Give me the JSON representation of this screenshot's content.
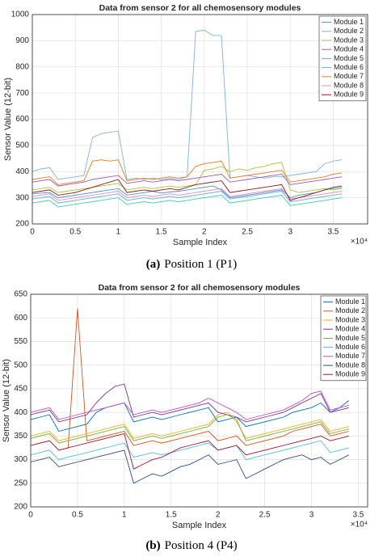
{
  "chart_data": [
    {
      "type": "line",
      "title": "Data from sensor 2 for all chemosensory modules",
      "x_label": "Sample Index",
      "y_label": "Sensor Value (12-bit)",
      "x_exponent_label": "×10⁴",
      "caption_label": "(a)",
      "caption": "Position 1 (P1)",
      "grid": true,
      "legend": "top-right",
      "xlim": [
        0,
        39000
      ],
      "ylim": [
        200,
        1000
      ],
      "xticks": [
        0,
        {
          "value": 5000,
          "label": "0.5"
        },
        {
          "value": 10000,
          "label": "1"
        },
        {
          "value": 15000,
          "label": "1.5"
        },
        {
          "value": 20000,
          "label": "2"
        },
        {
          "value": 25000,
          "label": "2.5"
        },
        {
          "value": 30000,
          "label": "3"
        },
        {
          "value": 35000,
          "label": "3.5"
        }
      ],
      "yticks": [
        200,
        300,
        400,
        500,
        600,
        700,
        800,
        900,
        1000
      ],
      "x": [
        0,
        1000,
        2000,
        3000,
        4000,
        5000,
        6000,
        7000,
        8000,
        9000,
        10000,
        11000,
        12000,
        13000,
        14000,
        15000,
        16000,
        17000,
        18000,
        19000,
        20000,
        21000,
        22000,
        23000,
        24000,
        25000,
        26000,
        27000,
        28000,
        29000,
        30000,
        31000,
        32000,
        33000,
        34000,
        35000,
        36000
      ],
      "series": [
        {
          "name": "Module 1",
          "color": "#4a90d9",
          "values": [
            315,
            318,
            320,
            300,
            305,
            310,
            315,
            320,
            325,
            330,
            335,
            310,
            315,
            320,
            325,
            318,
            322,
            325,
            330,
            335,
            340,
            345,
            330,
            300,
            305,
            310,
            315,
            320,
            325,
            330,
            300,
            310,
            315,
            320,
            330,
            335,
            340
          ]
        },
        {
          "name": "Module 2",
          "color": "#7fb2e5",
          "values": [
            400,
            410,
            415,
            370,
            375,
            380,
            385,
            530,
            545,
            550,
            555,
            370,
            375,
            370,
            375,
            370,
            375,
            370,
            380,
            935,
            940,
            920,
            920,
            375,
            380,
            385,
            380,
            375,
            380,
            380,
            385,
            390,
            395,
            400,
            430,
            440,
            445
          ]
        },
        {
          "name": "Module 3",
          "color": "#a8c43a",
          "values": [
            330,
            335,
            340,
            320,
            325,
            330,
            335,
            340,
            345,
            350,
            355,
            330,
            335,
            340,
            335,
            340,
            345,
            340,
            345,
            350,
            405,
            410,
            420,
            400,
            410,
            405,
            415,
            420,
            430,
            435,
            330,
            320,
            325,
            330,
            335,
            330,
            335
          ]
        },
        {
          "name": "Module 4",
          "color": "#9b59b6",
          "values": [
            360,
            365,
            370,
            345,
            350,
            355,
            360,
            370,
            375,
            380,
            385,
            355,
            360,
            365,
            360,
            365,
            370,
            365,
            370,
            375,
            380,
            385,
            390,
            360,
            365,
            370,
            375,
            380,
            385,
            390,
            350,
            355,
            360,
            365,
            370,
            375,
            380
          ]
        },
        {
          "name": "Module 5",
          "color": "#5dade2",
          "values": [
            295,
            300,
            305,
            280,
            285,
            290,
            295,
            300,
            305,
            310,
            315,
            290,
            295,
            300,
            295,
            300,
            305,
            300,
            305,
            310,
            315,
            320,
            325,
            295,
            300,
            305,
            310,
            315,
            320,
            325,
            285,
            290,
            295,
            300,
            305,
            310,
            315
          ]
        },
        {
          "name": "Module 6",
          "color": "#48c9b0",
          "values": [
            280,
            285,
            290,
            265,
            270,
            275,
            280,
            285,
            290,
            295,
            300,
            275,
            280,
            285,
            280,
            285,
            290,
            285,
            290,
            295,
            300,
            305,
            310,
            280,
            285,
            290,
            295,
            300,
            305,
            310,
            270,
            275,
            280,
            285,
            290,
            295,
            300
          ]
        },
        {
          "name": "Module 7",
          "color": "#e67e22",
          "values": [
            370,
            375,
            380,
            350,
            355,
            360,
            365,
            440,
            445,
            440,
            445,
            365,
            370,
            375,
            370,
            375,
            380,
            375,
            380,
            420,
            430,
            435,
            440,
            375,
            380,
            385,
            390,
            395,
            400,
            405,
            360,
            365,
            370,
            375,
            380,
            390,
            395
          ]
        },
        {
          "name": "Module 8",
          "color": "#e88bb5",
          "values": [
            305,
            310,
            315,
            290,
            295,
            300,
            305,
            310,
            315,
            320,
            325,
            300,
            305,
            310,
            305,
            310,
            315,
            310,
            315,
            320,
            325,
            330,
            335,
            305,
            310,
            315,
            320,
            325,
            330,
            335,
            295,
            300,
            305,
            310,
            315,
            320,
            325
          ]
        },
        {
          "name": "Module 9",
          "color": "#8b1a1a",
          "values": [
            320,
            325,
            330,
            310,
            315,
            320,
            330,
            340,
            350,
            360,
            370,
            320,
            325,
            330,
            325,
            330,
            335,
            330,
            340,
            350,
            355,
            360,
            365,
            320,
            325,
            330,
            335,
            340,
            345,
            350,
            290,
            300,
            310,
            320,
            330,
            340,
            345
          ]
        }
      ]
    },
    {
      "type": "line",
      "title": "Data from sensor 2 for all chemosensory modules",
      "x_label": "Sample Index",
      "y_label": "Sensor Value (12-bit)",
      "x_exponent_label": "×10⁴",
      "caption_label": "(b)",
      "caption": "Position 4 (P4)",
      "grid": true,
      "legend": "top-right",
      "xlim": [
        0,
        36000
      ],
      "ylim": [
        200,
        650
      ],
      "xticks": [
        0,
        {
          "value": 5000,
          "label": "0.5"
        },
        {
          "value": 10000,
          "label": "1"
        },
        {
          "value": 15000,
          "label": "1.5"
        },
        {
          "value": 20000,
          "label": "2"
        },
        {
          "value": 25000,
          "label": "2.5"
        },
        {
          "value": 30000,
          "label": "3"
        },
        {
          "value": 35000,
          "label": "3.5"
        }
      ],
      "yticks": [
        200,
        250,
        300,
        350,
        400,
        450,
        500,
        550,
        600,
        650
      ],
      "x": [
        0,
        1000,
        2000,
        3000,
        4000,
        5000,
        6000,
        7000,
        8000,
        9000,
        10000,
        11000,
        12000,
        13000,
        14000,
        15000,
        16000,
        17000,
        18000,
        19000,
        20000,
        21000,
        22000,
        23000,
        24000,
        25000,
        26000,
        27000,
        28000,
        29000,
        30000,
        31000,
        32000,
        33000,
        34000
      ],
      "series": [
        {
          "name": "Module 1",
          "color": "#0072bd",
          "values": [
            385,
            390,
            395,
            360,
            365,
            370,
            375,
            400,
            410,
            415,
            420,
            380,
            385,
            390,
            385,
            390,
            395,
            400,
            405,
            410,
            380,
            385,
            390,
            370,
            375,
            380,
            385,
            390,
            400,
            405,
            410,
            420,
            400,
            410,
            425
          ]
        },
        {
          "name": "Module 2",
          "color": "#d95319",
          "values": [
            330,
            335,
            340,
            320,
            325,
            620,
            340,
            345,
            350,
            355,
            360,
            330,
            335,
            340,
            335,
            340,
            345,
            350,
            355,
            360,
            340,
            345,
            350,
            330,
            335,
            340,
            345,
            350,
            360,
            365,
            370,
            375,
            350,
            355,
            360
          ]
        },
        {
          "name": "Module 3",
          "color": "#edb120",
          "values": [
            350,
            355,
            360,
            340,
            345,
            350,
            355,
            360,
            365,
            370,
            375,
            345,
            350,
            355,
            350,
            355,
            360,
            365,
            370,
            375,
            395,
            400,
            380,
            345,
            350,
            355,
            360,
            365,
            370,
            375,
            380,
            385,
            360,
            365,
            370
          ]
        },
        {
          "name": "Module 4",
          "color": "#7e2f8e",
          "values": [
            395,
            400,
            405,
            380,
            385,
            390,
            395,
            420,
            440,
            455,
            460,
            390,
            395,
            400,
            395,
            400,
            405,
            410,
            415,
            420,
            400,
            395,
            390,
            380,
            385,
            390,
            395,
            400,
            410,
            420,
            430,
            440,
            400,
            405,
            410
          ]
        },
        {
          "name": "Module 5",
          "color": "#77ac30",
          "values": [
            345,
            350,
            355,
            335,
            340,
            345,
            350,
            355,
            360,
            365,
            370,
            340,
            345,
            350,
            345,
            350,
            355,
            360,
            365,
            370,
            390,
            395,
            385,
            340,
            345,
            350,
            355,
            360,
            365,
            370,
            375,
            380,
            355,
            360,
            365
          ]
        },
        {
          "name": "Module 6",
          "color": "#4dbeee",
          "values": [
            310,
            315,
            320,
            300,
            305,
            310,
            315,
            320,
            325,
            330,
            335,
            305,
            310,
            315,
            310,
            315,
            320,
            325,
            330,
            335,
            320,
            325,
            330,
            300,
            305,
            310,
            315,
            320,
            325,
            330,
            335,
            340,
            315,
            320,
            325
          ]
        },
        {
          "name": "Module 7",
          "color": "#c04fc0",
          "values": [
            400,
            405,
            410,
            385,
            390,
            395,
            400,
            405,
            410,
            415,
            420,
            395,
            400,
            405,
            400,
            405,
            410,
            415,
            420,
            430,
            420,
            410,
            400,
            385,
            390,
            395,
            400,
            405,
            415,
            425,
            440,
            445,
            405,
            410,
            415
          ]
        },
        {
          "name": "Module 8",
          "color": "#2a4d8f",
          "values": [
            295,
            300,
            305,
            285,
            290,
            295,
            300,
            305,
            310,
            315,
            320,
            250,
            260,
            270,
            265,
            275,
            285,
            290,
            300,
            310,
            290,
            295,
            300,
            260,
            270,
            280,
            290,
            300,
            305,
            310,
            300,
            305,
            290,
            300,
            310
          ]
        },
        {
          "name": "Module 9",
          "color": "#a2142f",
          "values": [
            330,
            335,
            340,
            320,
            325,
            330,
            335,
            340,
            345,
            350,
            355,
            280,
            290,
            300,
            305,
            315,
            325,
            330,
            335,
            340,
            320,
            325,
            330,
            310,
            315,
            320,
            325,
            330,
            335,
            340,
            345,
            350,
            340,
            345,
            350
          ]
        }
      ]
    }
  ]
}
